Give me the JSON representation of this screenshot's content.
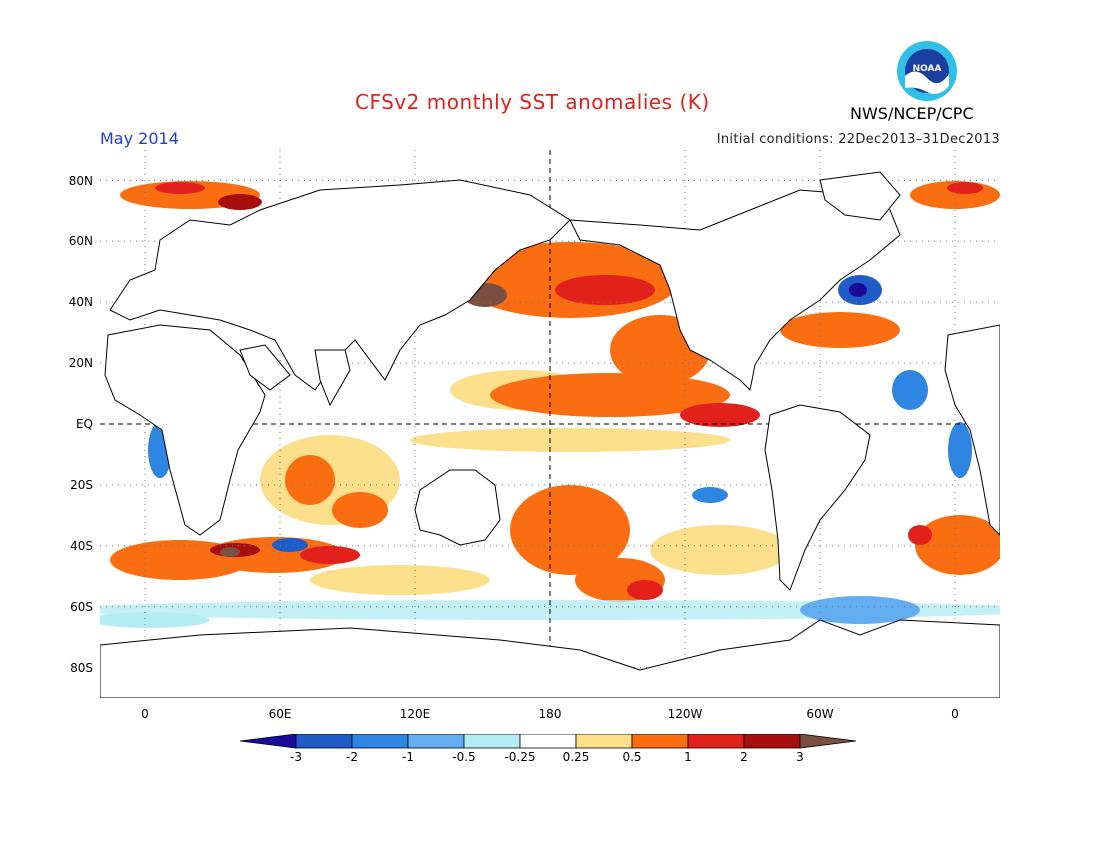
{
  "header": {
    "title": "CFSv2 monthly SST anomalies (K)",
    "agency": "NWS/NCEP/CPC",
    "month": "May 2014",
    "initial_conditions": "Initial conditions: 22Dec2013–31Dec2013"
  },
  "logo": {
    "text": "NOAA",
    "icon": "noaa-logo"
  },
  "map": {
    "projection": "equirectangular",
    "lon_range": [
      -20,
      380
    ],
    "lat_range": [
      -90,
      90
    ],
    "dashed_reference_lines": [
      "equator",
      "dateline-180"
    ],
    "grid": "dotted"
  },
  "axes": {
    "lat_ticks": [
      "80N",
      "60N",
      "40N",
      "20N",
      "EQ",
      "20S",
      "40S",
      "60S",
      "80S"
    ],
    "lon_ticks": [
      "0",
      "60E",
      "120E",
      "180",
      "120W",
      "60W",
      "0"
    ]
  },
  "colorbar": {
    "labels": [
      "-3",
      "-2",
      "-1",
      "-0.5",
      "-0.25",
      "0.25",
      "0.5",
      "1",
      "2",
      "3"
    ],
    "colors": [
      "#1a0b9c",
      "#1f5cc7",
      "#2f86e2",
      "#62aef0",
      "#b4ecf4",
      "#ffffff",
      "#fbdf8a",
      "#fa6d10",
      "#e2211c",
      "#a70f0f",
      "#7a4f41"
    ]
  }
}
